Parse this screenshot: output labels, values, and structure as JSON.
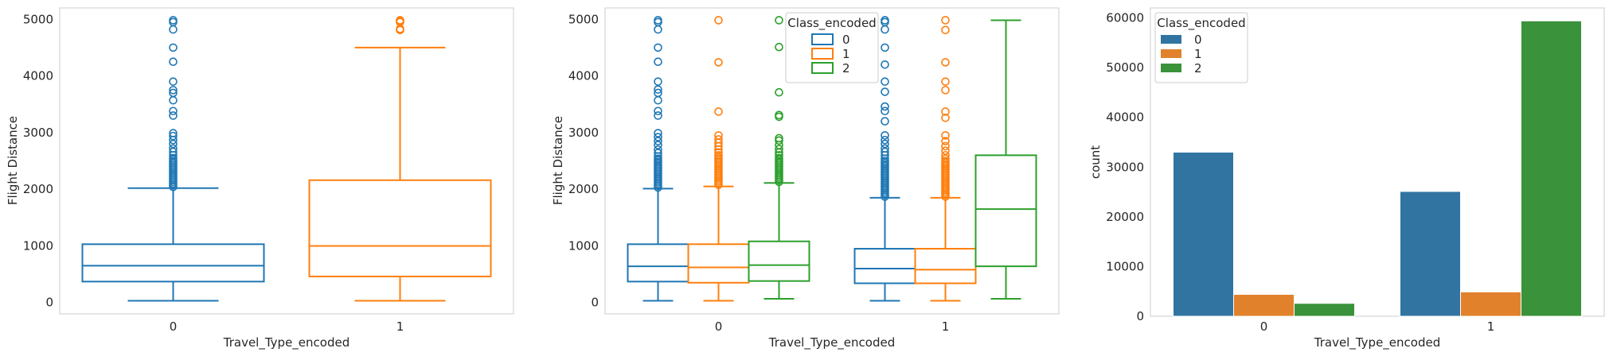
{
  "chart_data": [
    {
      "type": "box",
      "xlabel": "Travel_Type_encoded",
      "ylabel": "Flight Distance",
      "categories": [
        "0",
        "1"
      ],
      "ylim": [
        -200,
        5200
      ],
      "yticks": [
        "0",
        "1000",
        "2000",
        "3000",
        "4000",
        "5000"
      ],
      "grid": false,
      "color": "#1f77b4",
      "boxes": [
        {
          "category": "0",
          "color": "#1f77b4",
          "min": 31,
          "q1": 370,
          "median": 650,
          "q3": 1030,
          "max": 2020,
          "outliers": [
            2040,
            2070,
            2100,
            2130,
            2160,
            2190,
            2220,
            2250,
            2280,
            2310,
            2340,
            2370,
            2400,
            2430,
            2460,
            2490,
            2520,
            2550,
            2600,
            2660,
            2720,
            2800,
            2870,
            2940,
            2990,
            3300,
            3380,
            3570,
            3700,
            3750,
            3900,
            4250,
            4500,
            4820,
            4950,
            4983
          ]
        },
        {
          "category": "1",
          "color": "#ff7f0e",
          "min": 31,
          "q1": 460,
          "median": 1000,
          "q3": 2160,
          "max": 4500,
          "outliers": [
            4810,
            4830,
            4950,
            4970,
            4983
          ]
        }
      ]
    },
    {
      "type": "box",
      "xlabel": "Travel_Type_encoded",
      "ylabel": "Flight Distance",
      "categories": [
        "0",
        "1"
      ],
      "ylim": [
        -200,
        5200
      ],
      "yticks": [
        "0",
        "1000",
        "2000",
        "3000",
        "4000",
        "5000"
      ],
      "grid": false,
      "legend": {
        "title": "Class_encoded",
        "placement": "top-center",
        "entries": [
          "0",
          "1",
          "2"
        ]
      },
      "colors": [
        "#1f77b4",
        "#ff7f0e",
        "#2ca02c"
      ],
      "groups": [
        {
          "category": "0",
          "boxes": [
            {
              "series": "0",
              "min": 31,
              "q1": 370,
              "median": 640,
              "q3": 1030,
              "max": 2010,
              "outliers": [
                2030,
                2060,
                2090,
                2120,
                2150,
                2180,
                2210,
                2240,
                2270,
                2300,
                2330,
                2360,
                2390,
                2420,
                2450,
                2480,
                2510,
                2540,
                2580,
                2640,
                2700,
                2780,
                2850,
                2920,
                2990,
                3300,
                3380,
                3570,
                3700,
                3760,
                3900,
                4250,
                4500,
                4820,
                4950,
                4983
              ]
            },
            {
              "series": "1",
              "min": 31,
              "q1": 350,
              "median": 620,
              "q3": 1030,
              "max": 2050,
              "outliers": [
                2080,
                2110,
                2140,
                2170,
                2200,
                2230,
                2260,
                2290,
                2320,
                2350,
                2380,
                2410,
                2440,
                2470,
                2500,
                2530,
                2560,
                2600,
                2650,
                2700,
                2760,
                2820,
                2880,
                2950,
                3370,
                4240,
                4983
              ]
            },
            {
              "series": "2",
              "min": 67,
              "q1": 380,
              "median": 660,
              "q3": 1080,
              "max": 2110,
              "outliers": [
                2130,
                2160,
                2190,
                2220,
                2250,
                2280,
                2310,
                2340,
                2370,
                2400,
                2430,
                2460,
                2490,
                2520,
                2550,
                2600,
                2650,
                2710,
                2780,
                2860,
                2900,
                3280,
                3310,
                3710,
                4510,
                4983
              ]
            }
          ]
        },
        {
          "category": "1",
          "boxes": [
            {
              "series": "0",
              "min": 31,
              "q1": 340,
              "median": 600,
              "q3": 950,
              "max": 1850,
              "outliers": [
                1870,
                1900,
                1930,
                1960,
                1990,
                2020,
                2050,
                2080,
                2110,
                2140,
                2170,
                2200,
                2230,
                2260,
                2290,
                2320,
                2350,
                2380,
                2410,
                2440,
                2470,
                2500,
                2540,
                2600,
                2660,
                2720,
                2800,
                2870,
                2950,
                3200,
                3380,
                3460,
                3720,
                3900,
                4200,
                4500,
                4820,
                4950,
                4983
              ]
            },
            {
              "series": "1",
              "min": 31,
              "q1": 340,
              "median": 580,
              "q3": 950,
              "max": 1850,
              "outliers": [
                1870,
                1900,
                1930,
                1960,
                1990,
                2020,
                2050,
                2080,
                2110,
                2140,
                2170,
                2200,
                2230,
                2260,
                2290,
                2320,
                2350,
                2380,
                2410,
                2440,
                2470,
                2500,
                2540,
                2600,
                2680,
                2760,
                2850,
                2950,
                3260,
                3370,
                3750,
                3900,
                4240,
                4810,
                4983
              ]
            },
            {
              "series": "2",
              "min": 67,
              "q1": 640,
              "median": 1650,
              "q3": 2600,
              "max": 4983,
              "outliers": []
            }
          ]
        }
      ]
    },
    {
      "type": "bar",
      "xlabel": "Travel_Type_encoded",
      "ylabel": "count",
      "categories": [
        "0",
        "1"
      ],
      "ylim": [
        0,
        62000
      ],
      "yticks": [
        "0",
        "10000",
        "20000",
        "30000",
        "40000",
        "50000",
        "60000"
      ],
      "grid": false,
      "legend": {
        "title": "Class_encoded",
        "placement": "top-left"
      },
      "series": [
        {
          "name": "0",
          "color": "#3274a1",
          "values": [
            33000,
            25100
          ]
        },
        {
          "name": "1",
          "color": "#e1812c",
          "values": [
            4400,
            4900
          ]
        },
        {
          "name": "2",
          "color": "#3a923a",
          "values": [
            2600,
            59400
          ]
        }
      ]
    }
  ]
}
